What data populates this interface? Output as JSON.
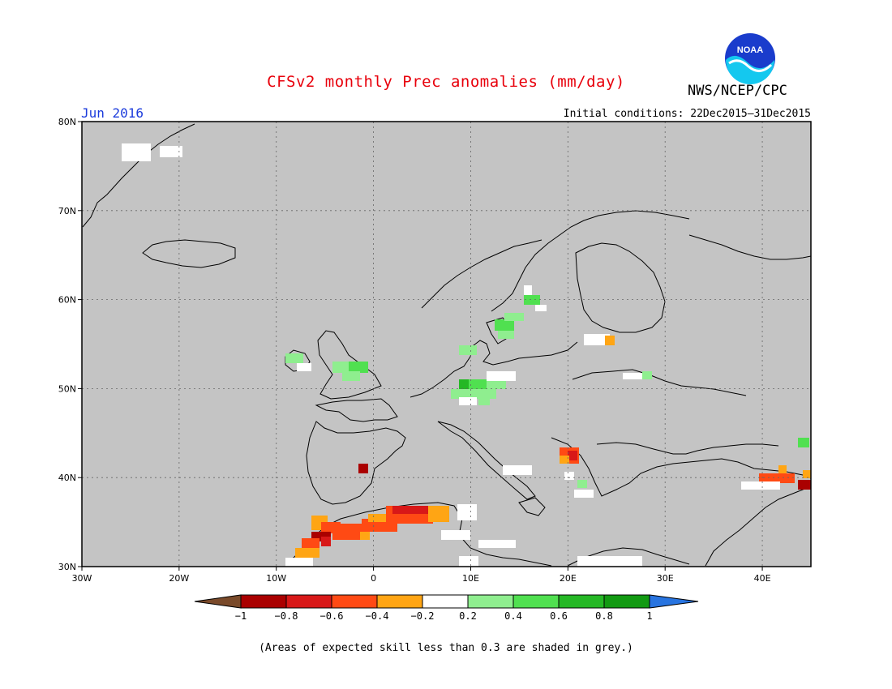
{
  "header": {
    "title": "CFSv2 monthly Prec anomalies (mm/day)",
    "agency": "NWS/NCEP/CPC",
    "logo_text": "NOAA",
    "period": "Jun 2016",
    "initial_conditions": "Initial conditions: 22Dec2015–31Dec2015"
  },
  "map": {
    "background_color": "#c4c4c4",
    "lat_labels": [
      "80N",
      "70N",
      "60N",
      "50N",
      "40N",
      "30N"
    ],
    "lon_labels": [
      "30W",
      "20W",
      "10W",
      "0",
      "10E",
      "20E",
      "30E",
      "40E"
    ]
  },
  "legend": {
    "tick_labels": [
      "−1",
      "−0.8",
      "−0.6",
      "−0.4",
      "−0.2",
      "0.2",
      "0.4",
      "0.6",
      "0.8",
      "1"
    ],
    "colors": {
      "lt_-1": "#7a4a2a",
      "-1_-0.8": "#aa0000",
      "-0.8_-0.6": "#d81818",
      "-0.6_-0.4": "#ff4a14",
      "-0.4_-0.2": "#ffa514",
      "-0.2_0.2": "#ffffff",
      "0.2_0.4": "#8fee8f",
      "0.4_0.6": "#50e050",
      "0.6_0.8": "#25b825",
      "0.8_1": "#129a12",
      "gt_1": "#2874e0"
    }
  },
  "caption": "(Areas of expected skill less than 0.3 are shaded in grey.)"
}
